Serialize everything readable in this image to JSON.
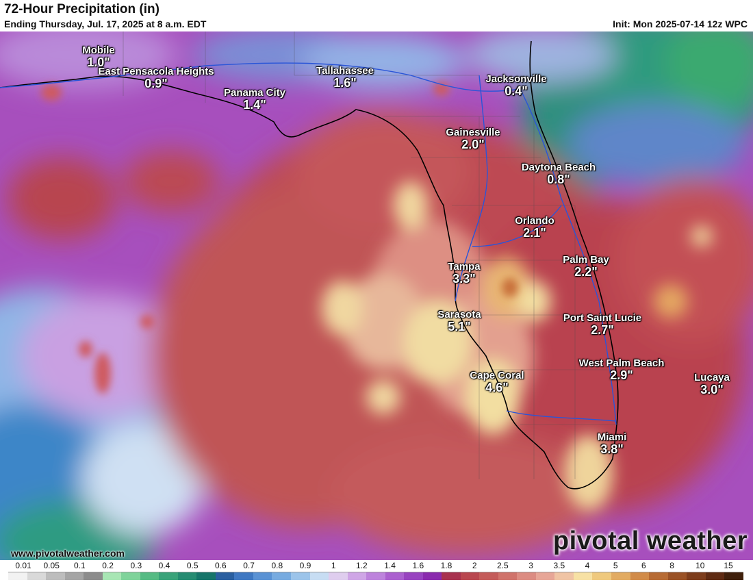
{
  "header": {
    "title": "72-Hour Precipitation (in)",
    "subtitle": "Ending Thursday, Jul. 17, 2025 at 8 a.m. EDT",
    "init": "Init: Mon 2025-07-14 12z WPC"
  },
  "cities": [
    {
      "name": "Mobile",
      "value": "1.0\""
    },
    {
      "name": "East Pensacola Heights",
      "value": "0.9\""
    },
    {
      "name": "Tallahassee",
      "value": "1.6\""
    },
    {
      "name": "Panama City",
      "value": "1.4\""
    },
    {
      "name": "Jacksonville",
      "value": "0.4\""
    },
    {
      "name": "Gainesville",
      "value": "2.0\""
    },
    {
      "name": "Daytona Beach",
      "value": "0.8\""
    },
    {
      "name": "Orlando",
      "value": "2.1\""
    },
    {
      "name": "Palm Bay",
      "value": "2.2\""
    },
    {
      "name": "Tampa",
      "value": "3.3\""
    },
    {
      "name": "Sarasota",
      "value": "5.1\""
    },
    {
      "name": "Port Saint Lucie",
      "value": "2.7\""
    },
    {
      "name": "West Palm Beach",
      "value": "2.9\""
    },
    {
      "name": "Cape Coral",
      "value": "4.6\""
    },
    {
      "name": "Lucaya",
      "value": "3.0\""
    },
    {
      "name": "Miami",
      "value": "3.8\""
    }
  ],
  "website": "www.pivotalweather.com",
  "brand": "pivotal weather",
  "legend": {
    "ticks": [
      "0.01",
      "0.05",
      "0.1",
      "0.2",
      "0.3",
      "0.4",
      "0.5",
      "0.6",
      "0.7",
      "0.8",
      "0.9",
      "1",
      "1.2",
      "1.4",
      "1.6",
      "1.8",
      "2",
      "2.5",
      "3",
      "3.5",
      "4",
      "5",
      "6",
      "8",
      "10",
      "15"
    ],
    "colors": [
      "#f2f2f2",
      "#d9d9d9",
      "#bdbdbd",
      "#a5a5a5",
      "#8c8c8c",
      "#a8e6b4",
      "#7fd39a",
      "#56bb84",
      "#3aa37a",
      "#268c72",
      "#16756a",
      "#2a5fa0",
      "#3f78c2",
      "#5a92d4",
      "#77abe0",
      "#9cc4ea",
      "#c7ddf3",
      "#dfcdee",
      "#cfa6e6",
      "#bd83dc",
      "#ab60cf",
      "#9843c0",
      "#8a2aae",
      "#a8324f",
      "#b9474f",
      "#c45c5a",
      "#d0736b",
      "#dc8c82",
      "#e7a697",
      "#f0c4a4",
      "#f7e1a4",
      "#efc97e",
      "#e2ab62",
      "#d18b49",
      "#b76b34",
      "#9a5226",
      "#7d3d1c",
      "#5f2b13",
      "#40200c"
    ]
  }
}
